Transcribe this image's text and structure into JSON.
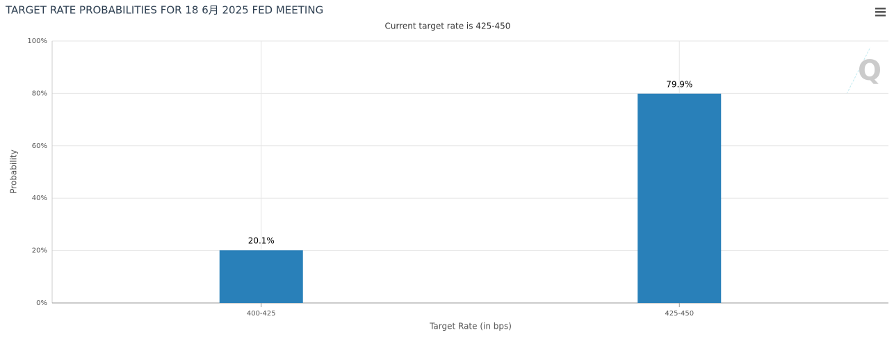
{
  "chart_data": {
    "type": "bar",
    "title": "TARGET RATE PROBABILITIES FOR 18 6月 2025 FED MEETING",
    "subtitle": "Current target rate is 425-450",
    "x_label": "Target Rate (in bps)",
    "y_label": "Probability",
    "categories": [
      "400-425",
      "425-450"
    ],
    "values": [
      20.1,
      79.9
    ],
    "value_labels": [
      "20.1%",
      "79.9%"
    ],
    "color": "#2980b9",
    "ylim": [
      0,
      100
    ],
    "yticks": [
      {
        "value": 0,
        "label": "0%"
      },
      {
        "value": 20,
        "label": "20%"
      },
      {
        "value": 40,
        "label": "40%"
      },
      {
        "value": 60,
        "label": "60%"
      },
      {
        "value": 80,
        "label": "80%"
      },
      {
        "value": 100,
        "label": "100%"
      }
    ],
    "grid": true
  }
}
